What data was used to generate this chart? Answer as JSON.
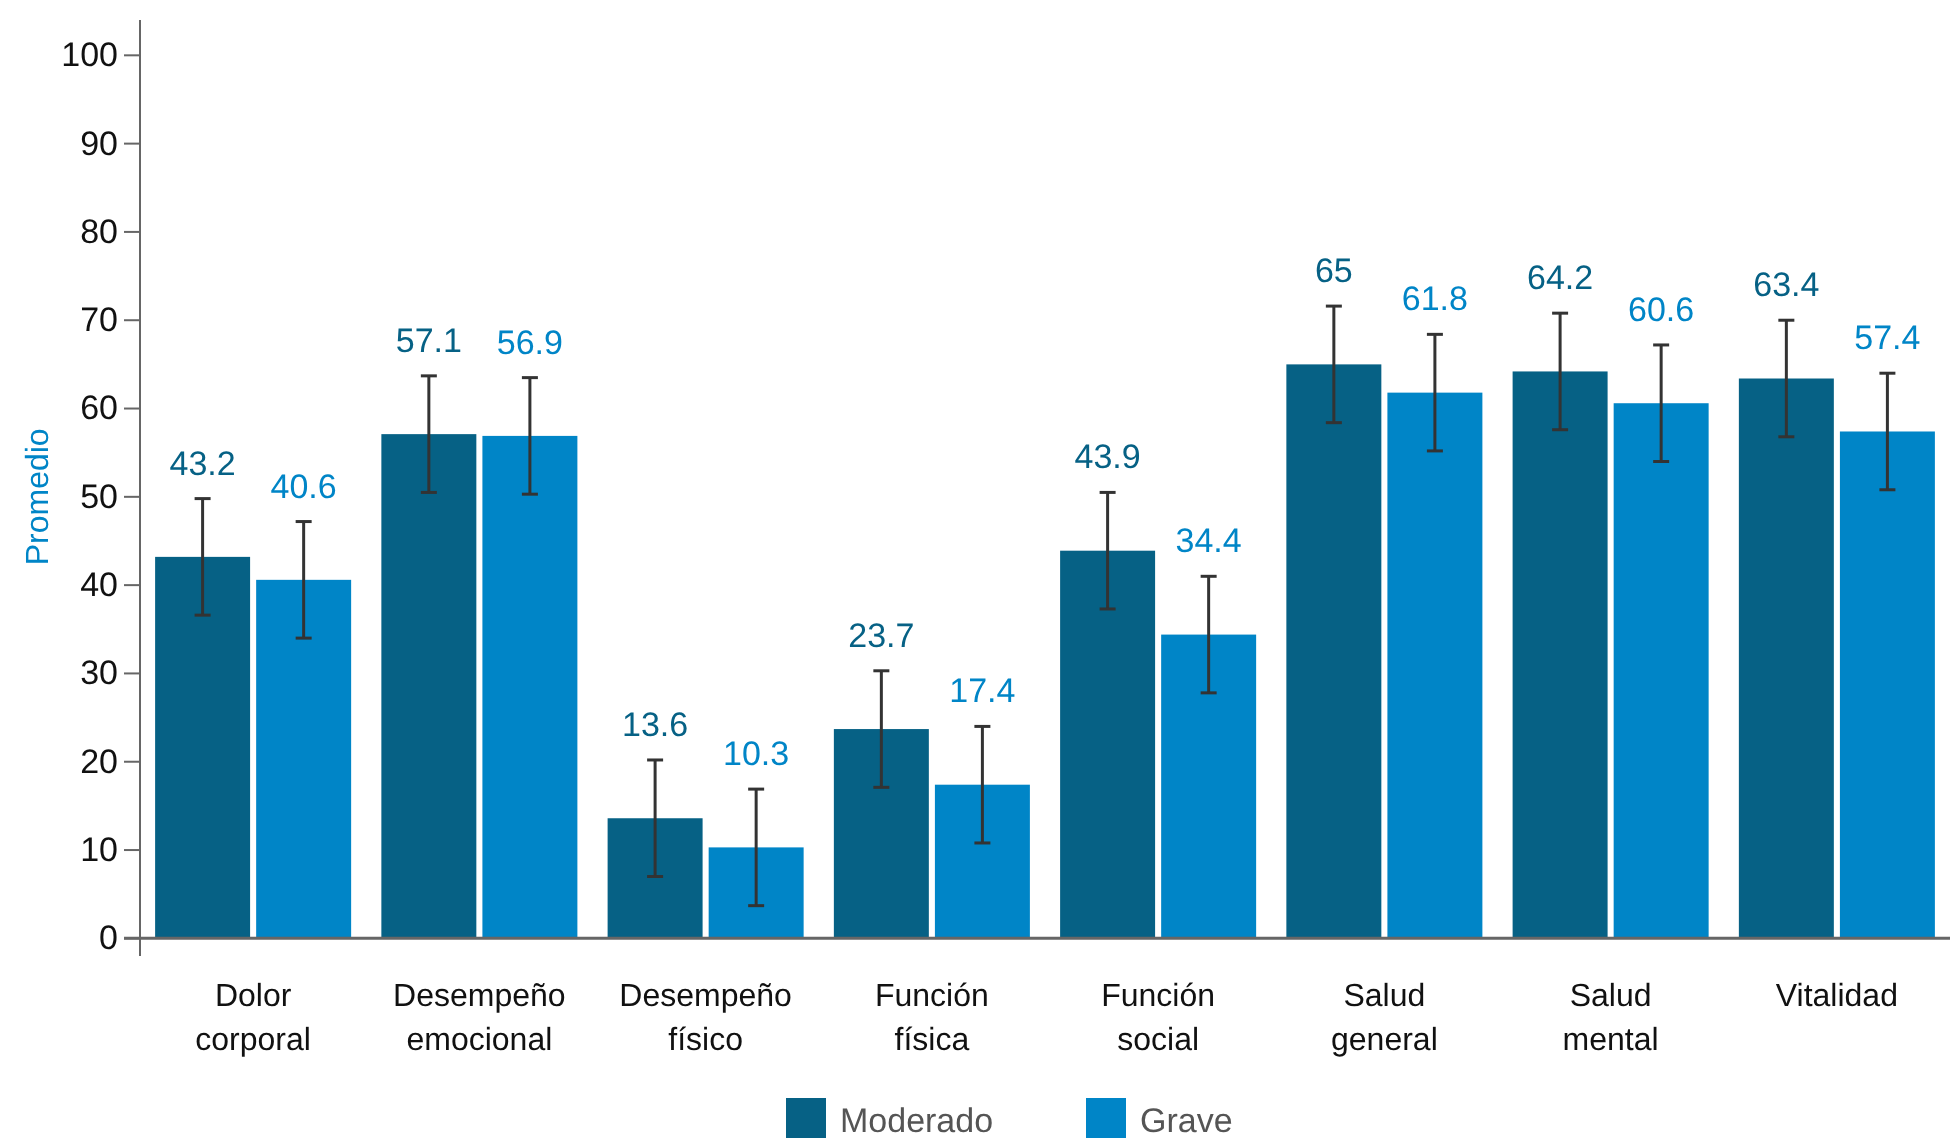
{
  "chart_data": {
    "type": "bar",
    "ylabel": "Promedio",
    "categories": [
      "Dolor corporal",
      "Desempeño emocional",
      "Desempeño físico",
      "Función física",
      "Función social",
      "Salud general",
      "Salud mental",
      "Vitalidad"
    ],
    "series": [
      {
        "name": "Moderado",
        "color": "#066185",
        "values": [
          43.2,
          57.1,
          13.6,
          23.7,
          43.9,
          65,
          64.2,
          63.4
        ],
        "errors": [
          6.6,
          6.6,
          6.6,
          6.6,
          6.6,
          6.6,
          6.6,
          6.6
        ]
      },
      {
        "name": "Grave",
        "color": "#0085c7",
        "values": [
          40.6,
          56.9,
          10.3,
          17.4,
          34.4,
          61.8,
          60.6,
          57.4
        ],
        "errors": [
          6.6,
          6.6,
          6.6,
          6.6,
          6.6,
          6.6,
          6.6,
          6.6
        ]
      }
    ],
    "ylim": [
      -2,
      104
    ],
    "yticks": [
      0,
      10,
      20,
      30,
      40,
      50,
      60,
      70,
      80,
      90,
      100
    ],
    "data_labels": true,
    "legend": "bottom",
    "grid": false
  }
}
